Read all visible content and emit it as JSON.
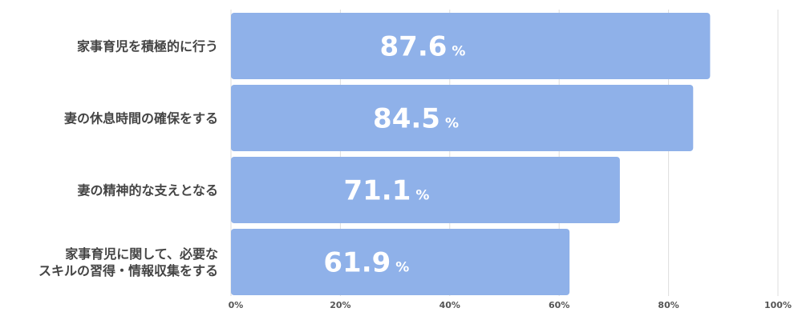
{
  "chart_data": {
    "type": "bar",
    "orientation": "horizontal",
    "categories": [
      [
        "家事育児を積極的に行う"
      ],
      [
        "妻の休息時間の確保をする"
      ],
      [
        "妻の精神的な支えとなる"
      ],
      [
        "家事育児に関して、必要な",
        "スキルの習得・情報収集をする"
      ]
    ],
    "values": [
      87.6,
      84.5,
      71.1,
      61.9
    ],
    "value_unit": "%",
    "xlim": [
      0,
      100
    ],
    "ticks": [
      0,
      20,
      40,
      60,
      80,
      100
    ],
    "tick_labels": [
      "0%",
      "20%",
      "40%",
      "60%",
      "80%",
      "100%"
    ],
    "grid": true,
    "bar_color": "#8fb1e9"
  }
}
